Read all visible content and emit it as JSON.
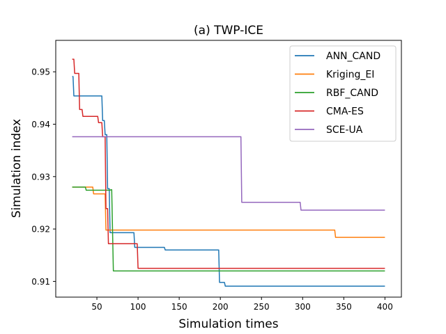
{
  "chart_data": {
    "type": "line",
    "title": "(a) TWP-ICE",
    "xlabel": "Simulation times",
    "ylabel": "Simulation index",
    "xlim": [
      0,
      420
    ],
    "ylim": [
      0.907,
      0.956
    ],
    "xticks": [
      50,
      100,
      150,
      200,
      250,
      300,
      350,
      400
    ],
    "yticks": [
      0.91,
      0.92,
      0.93,
      0.94,
      0.95
    ],
    "xtick_labels": [
      "50",
      "100",
      "150",
      "200",
      "250",
      "300",
      "350",
      "400"
    ],
    "ytick_labels": [
      "0.91",
      "0.92",
      "0.93",
      "0.94",
      "0.95"
    ],
    "grid": false,
    "legend_position": "top-right",
    "series": [
      {
        "name": "ANN_CAND",
        "color": "#1f77b4",
        "points": [
          [
            20,
            0.9491
          ],
          [
            21,
            0.9491
          ],
          [
            22,
            0.9454
          ],
          [
            56,
            0.9454
          ],
          [
            57,
            0.9407
          ],
          [
            59,
            0.9407
          ],
          [
            60,
            0.938
          ],
          [
            62,
            0.938
          ],
          [
            63,
            0.9277
          ],
          [
            65,
            0.9277
          ],
          [
            66,
            0.9193
          ],
          [
            95,
            0.9193
          ],
          [
            96,
            0.9165
          ],
          [
            132,
            0.9165
          ],
          [
            133,
            0.916
          ],
          [
            198,
            0.916
          ],
          [
            199,
            0.9098
          ],
          [
            205,
            0.9098
          ],
          [
            206,
            0.9091
          ],
          [
            400,
            0.9091
          ]
        ]
      },
      {
        "name": "Kriging_EI",
        "color": "#ff7f0e",
        "points": [
          [
            20,
            0.928
          ],
          [
            45,
            0.928
          ],
          [
            46,
            0.9267
          ],
          [
            60,
            0.9267
          ],
          [
            61,
            0.9198
          ],
          [
            339,
            0.9198
          ],
          [
            340,
            0.9184
          ],
          [
            400,
            0.9184
          ]
        ]
      },
      {
        "name": "RBF_CAND",
        "color": "#2ca02c",
        "points": [
          [
            20,
            0.928
          ],
          [
            36,
            0.928
          ],
          [
            37,
            0.9274
          ],
          [
            66,
            0.9274
          ],
          [
            67,
            0.9275
          ],
          [
            68,
            0.9275
          ],
          [
            70,
            0.912
          ],
          [
            400,
            0.912
          ]
        ]
      },
      {
        "name": "CMA-ES",
        "color": "#d62728",
        "points": [
          [
            20,
            0.9524
          ],
          [
            22,
            0.9524
          ],
          [
            23,
            0.9497
          ],
          [
            28,
            0.9497
          ],
          [
            29,
            0.9428
          ],
          [
            32,
            0.9428
          ],
          [
            33,
            0.9415
          ],
          [
            51,
            0.9415
          ],
          [
            52,
            0.9403
          ],
          [
            56,
            0.9403
          ],
          [
            57,
            0.9376
          ],
          [
            60,
            0.9376
          ],
          [
            61,
            0.9239
          ],
          [
            63,
            0.9239
          ],
          [
            64,
            0.9172
          ],
          [
            99,
            0.9172
          ],
          [
            100,
            0.9125
          ],
          [
            400,
            0.9125
          ]
        ]
      },
      {
        "name": "SCE-UA",
        "color": "#9467bd",
        "points": [
          [
            20,
            0.9376
          ],
          [
            225,
            0.9376
          ],
          [
            226,
            0.9251
          ],
          [
            297,
            0.9251
          ],
          [
            298,
            0.9236
          ],
          [
            400,
            0.9236
          ]
        ]
      }
    ]
  }
}
